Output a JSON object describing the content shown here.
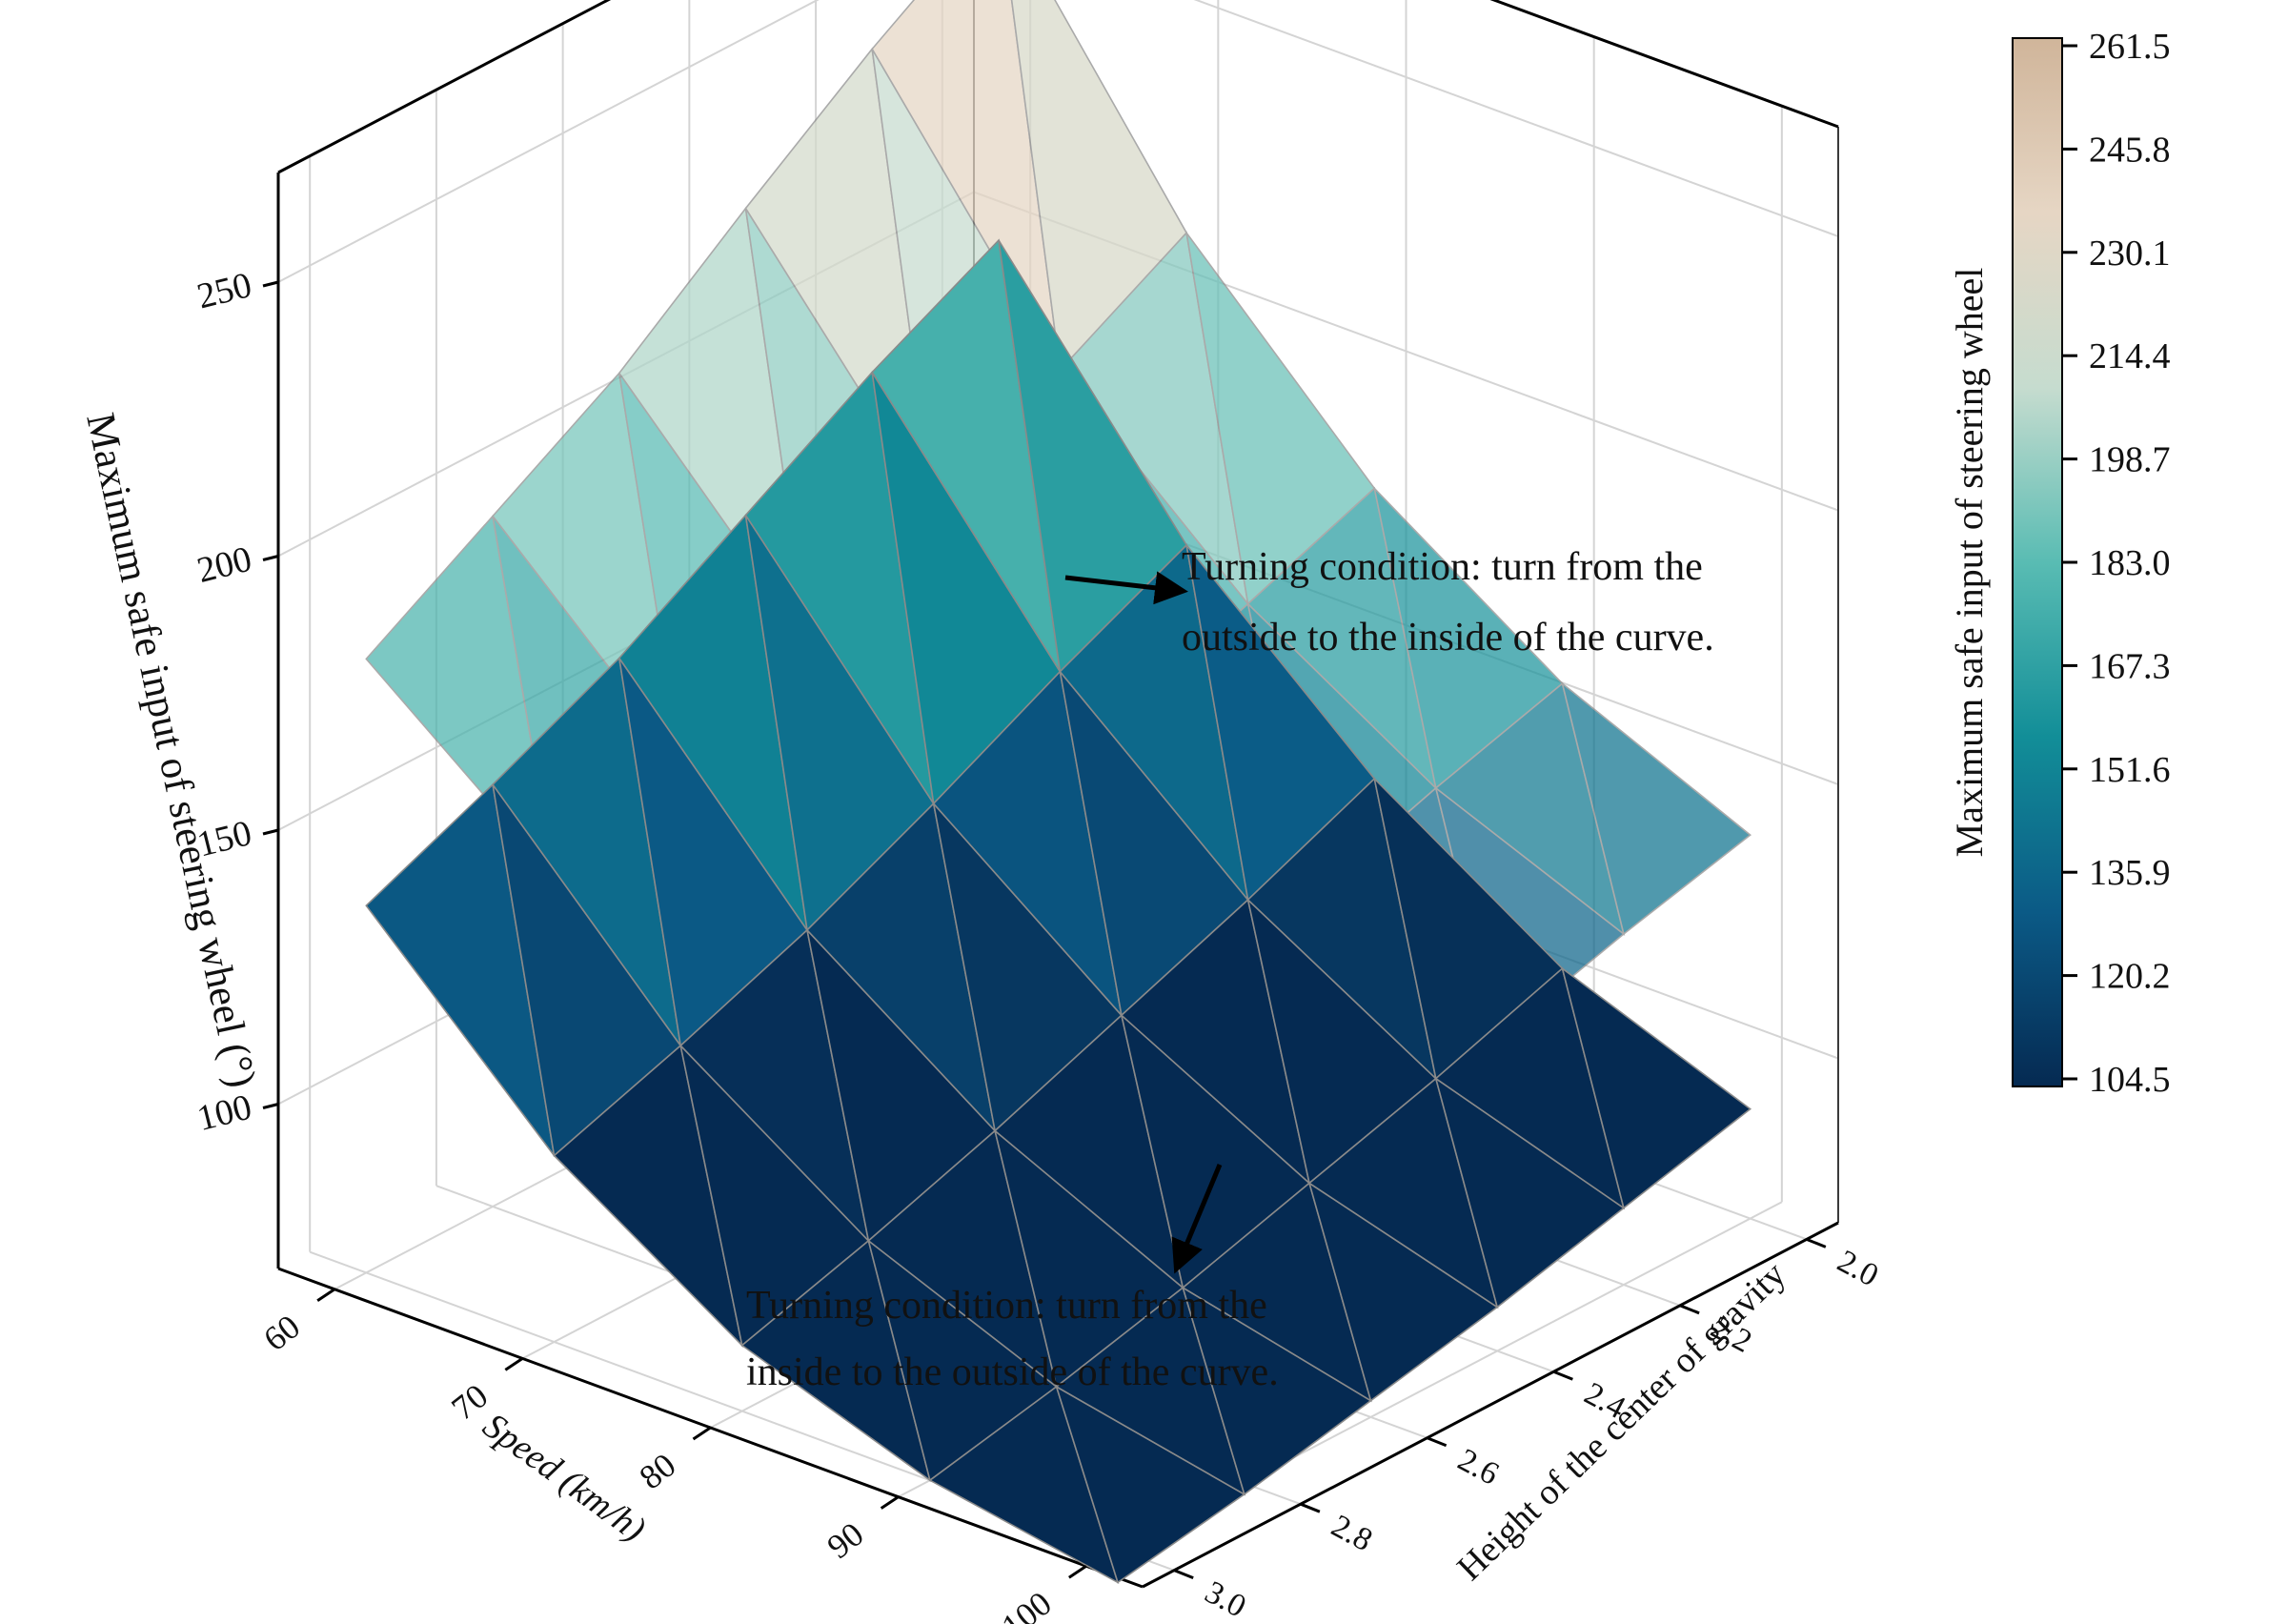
{
  "chart_data": {
    "type": "surface3d",
    "title": "",
    "x_axis": {
      "label": "Speed (km/h)",
      "ticks": [
        60,
        70,
        80,
        90,
        100
      ],
      "range": [
        57,
        103
      ]
    },
    "y_axis": {
      "label": "Height of the center of gravity",
      "ticks": [
        "2.0",
        "2.2",
        "2.4",
        "2.6",
        "2.8",
        "3.0"
      ],
      "range": [
        1.95,
        3.05
      ]
    },
    "z_axis": {
      "label": "Maximum safe input of steering wheel (°)",
      "ticks": [
        100,
        150,
        200,
        250
      ],
      "range": [
        70,
        270
      ]
    },
    "grid": true,
    "colorbar": {
      "label": "Maximum safe input of steering wheel",
      "ticks": [
        "261.5",
        "245.8",
        "230.1",
        "214.4",
        "198.7",
        "183.0",
        "167.3",
        "151.6",
        "135.9",
        "120.2",
        "104.5"
      ],
      "min": 104.5,
      "max": 261.5,
      "colors": [
        "#052a52",
        "#0b5a86",
        "#128e98",
        "#59bcb3",
        "#c6dccf",
        "#e6d6c4",
        "#d0b59a"
      ]
    },
    "grid_x": [
      60,
      70,
      80,
      90,
      100
    ],
    "grid_y": [
      2.0,
      2.2,
      2.4,
      2.6,
      2.8,
      3.0
    ],
    "surfaces": [
      {
        "z": [
          [
            260,
            245,
            228,
            210,
            196,
            182
          ],
          [
            212,
            199,
            186,
            174,
            164,
            155
          ],
          [
            178,
            169,
            160,
            151,
            143,
            136
          ],
          [
            155,
            148,
            140,
            133,
            127,
            121
          ],
          [
            140,
            134,
            127,
            121,
            116,
            111
          ]
        ],
        "opacity": 0.72
      },
      {
        "z": [
          [
            198,
            186,
            172,
            158,
            147,
            137
          ],
          [
            155,
            144,
            132,
            121,
            112,
            104
          ],
          [
            125,
            115,
            106,
            97,
            89,
            82
          ],
          [
            103,
            95,
            88,
            81,
            75,
            70
          ],
          [
            90,
            84,
            78,
            73,
            68,
            64
          ]
        ],
        "opacity": 1.0
      }
    ],
    "annotations": [
      {
        "lines": [
          "Turning condition: turn from the",
          "outside to the inside of the curve."
        ]
      },
      {
        "lines": [
          "Turning condition: turn from the",
          "inside to the outside of the curve."
        ]
      }
    ]
  }
}
